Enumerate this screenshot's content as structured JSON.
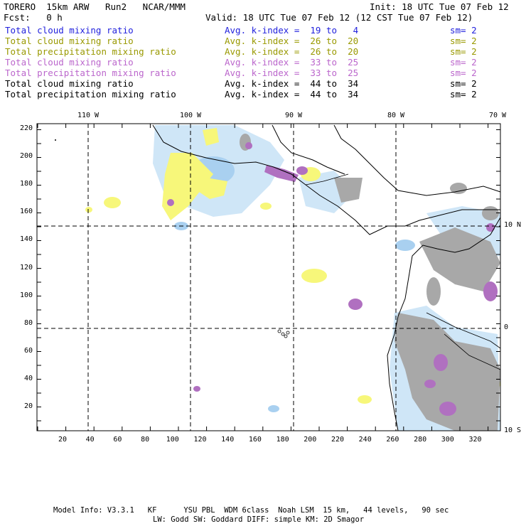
{
  "header": {
    "title": "TORERO  15km ARW   Run2   NCAR/MMM",
    "init": "Init: 18 UTC Tue 07 Feb 12",
    "fcst": "Fcst:   0 h",
    "valid": "Valid: 18 UTC Tue 07 Feb 12 (12 CST Tue 07 Feb 12)"
  },
  "legend": [
    {
      "label": "Total cloud mixing ratio",
      "avg": "Avg. k-index =  19 to   4",
      "sm": "sm= 2",
      "color": "#2222dd"
    },
    {
      "label": "Total cloud mixing ratio",
      "avg": "Avg. k-index =  26 to  20",
      "sm": "sm= 2",
      "color": "#999900"
    },
    {
      "label": "Total precipitation mixing ratio",
      "avg": "Avg. k-index =  26 to  20",
      "sm": "sm= 2",
      "color": "#999900"
    },
    {
      "label": "Total cloud mixing ratio",
      "avg": "Avg. k-index =  33 to  25",
      "sm": "sm= 2",
      "color": "#bb66cc"
    },
    {
      "label": "Total precipitation mixing ratio",
      "avg": "Avg. k-index =  33 to  25",
      "sm": "sm= 2",
      "color": "#bb66cc"
    },
    {
      "label": "Total cloud mixing ratio",
      "avg": "Avg. k-index =  44 to  34",
      "sm": "sm= 2",
      "color": "#000000"
    },
    {
      "label": "Total precipitation mixing ratio",
      "avg": "Avg. k-index =  44 to  34",
      "sm": "sm= 2",
      "color": "#000000"
    }
  ],
  "map": {
    "lon_labels": [
      "110 W",
      "100 W",
      "90 W",
      "80 W",
      "70 W"
    ],
    "lat_labels": [
      "10 N",
      "0",
      "10 S"
    ],
    "x_ticks": [
      "20",
      "40",
      "60",
      "80",
      "100",
      "120",
      "140",
      "160",
      "180",
      "200",
      "220",
      "240",
      "260",
      "280",
      "300",
      "320"
    ],
    "y_ticks": [
      "220",
      "200",
      "180",
      "160",
      "140",
      "120",
      "100",
      "80",
      "60",
      "40",
      "20"
    ],
    "colors": {
      "light_blue": "#cfe6f7",
      "mid_blue": "#a9d0f0",
      "yellow": "#f7f77a",
      "purple": "#b070c0",
      "gray": "#a8a8a8"
    }
  },
  "footer": {
    "line1": "Model Info: V3.3.1   KF      YSU PBL  WDM 6class  Noah LSM  15 km,   44 levels,   90 sec",
    "line2": "LW: Godd SW: Goddard DIFF: simple KM: 2D Smagor"
  }
}
